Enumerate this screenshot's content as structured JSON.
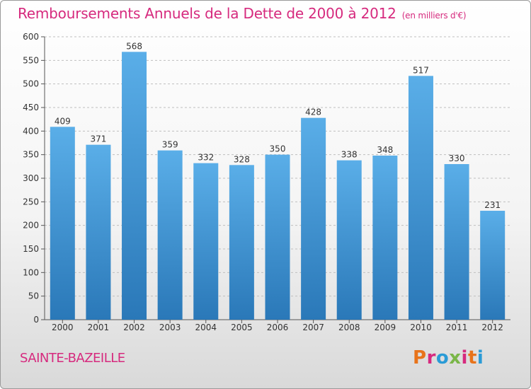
{
  "header": {
    "title": "Remboursements Annuels de la Dette de 2000 à 2012",
    "subtitle": "(en milliers d'€)"
  },
  "footer": {
    "place": "SAINTE-BAZEILLE",
    "logo_text": "Proxiti",
    "logo_colors": [
      "#e8731a",
      "#d62a7e",
      "#2a9bd6",
      "#7ab648",
      "#d62a7e",
      "#e8731a",
      "#2a9bd6"
    ]
  },
  "chart_data": {
    "type": "bar",
    "title": "Remboursements Annuels de la Dette de 2000 à 2012",
    "subtitle": "(en milliers d'€)",
    "categories": [
      "2000",
      "2001",
      "2002",
      "2003",
      "2004",
      "2005",
      "2006",
      "2007",
      "2008",
      "2009",
      "2010",
      "2011",
      "2012"
    ],
    "values": [
      409,
      371,
      568,
      359,
      332,
      328,
      350,
      428,
      338,
      348,
      517,
      330,
      231
    ],
    "ylim": [
      0,
      600
    ],
    "yticks": [
      0,
      50,
      100,
      150,
      200,
      250,
      300,
      350,
      400,
      450,
      500,
      550,
      600
    ],
    "grid": true,
    "bar_color_top": "#5aaee8",
    "bar_color_bottom": "#2a78b8"
  }
}
